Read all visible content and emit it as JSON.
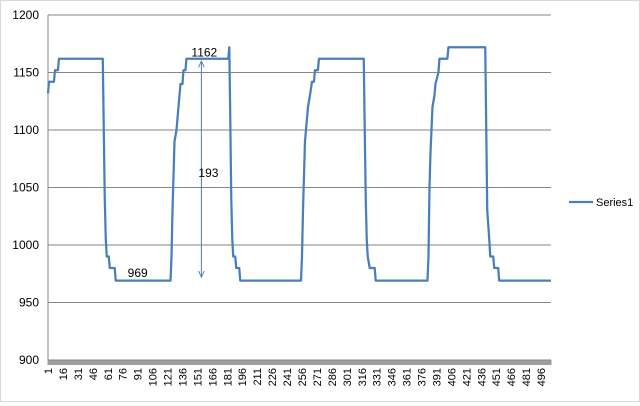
{
  "chart_data": {
    "type": "line",
    "title": "",
    "xlabel": "",
    "ylabel": "",
    "ylim": [
      900,
      1200
    ],
    "yticks": [
      900,
      950,
      1000,
      1050,
      1100,
      1150,
      1200
    ],
    "xlim": [
      1,
      506
    ],
    "xticks": [
      1,
      16,
      31,
      46,
      61,
      76,
      91,
      106,
      121,
      136,
      151,
      166,
      181,
      196,
      211,
      226,
      241,
      256,
      271,
      286,
      301,
      316,
      331,
      346,
      361,
      376,
      391,
      406,
      421,
      436,
      451,
      466,
      481,
      496
    ],
    "grid": "horizontal",
    "legend_position": "right",
    "colors": {
      "series": "#4a7ebb",
      "grid": "#868686",
      "axis": "#868686",
      "annotation_arrow": "#4a7ebb"
    },
    "series": [
      {
        "name": "Series1",
        "points": [
          [
            1,
            1132
          ],
          [
            2,
            1142
          ],
          [
            7,
            1142
          ],
          [
            8,
            1152
          ],
          [
            11,
            1152
          ],
          [
            12,
            1162
          ],
          [
            56,
            1162
          ],
          [
            57,
            1100
          ],
          [
            58,
            1040
          ],
          [
            59,
            1005
          ],
          [
            60,
            990
          ],
          [
            62,
            990
          ],
          [
            63,
            980
          ],
          [
            68,
            980
          ],
          [
            69,
            969
          ],
          [
            124,
            969
          ],
          [
            125,
            990
          ],
          [
            126,
            1030
          ],
          [
            127,
            1060
          ],
          [
            128,
            1090
          ],
          [
            130,
            1100
          ],
          [
            131,
            1110
          ],
          [
            132,
            1120
          ],
          [
            133,
            1130
          ],
          [
            134,
            1140
          ],
          [
            136,
            1140
          ],
          [
            137,
            1152
          ],
          [
            139,
            1152
          ],
          [
            140,
            1162
          ],
          [
            182,
            1162
          ],
          [
            183,
            1172
          ],
          [
            184,
            1110
          ],
          [
            185,
            1040
          ],
          [
            186,
            1005
          ],
          [
            187,
            990
          ],
          [
            189,
            990
          ],
          [
            190,
            980
          ],
          [
            193,
            980
          ],
          [
            194,
            969
          ],
          [
            255,
            969
          ],
          [
            256,
            990
          ],
          [
            257,
            1030
          ],
          [
            258,
            1060
          ],
          [
            259,
            1090
          ],
          [
            261,
            1110
          ],
          [
            262,
            1120
          ],
          [
            264,
            1130
          ],
          [
            266,
            1142
          ],
          [
            268,
            1142
          ],
          [
            269,
            1152
          ],
          [
            272,
            1152
          ],
          [
            273,
            1162
          ],
          [
            318,
            1162
          ],
          [
            319,
            1100
          ],
          [
            320,
            1040
          ],
          [
            321,
            1005
          ],
          [
            322,
            990
          ],
          [
            324,
            980
          ],
          [
            329,
            980
          ],
          [
            330,
            969
          ],
          [
            382,
            969
          ],
          [
            383,
            990
          ],
          [
            384,
            1050
          ],
          [
            385,
            1080
          ],
          [
            386,
            1100
          ],
          [
            387,
            1120
          ],
          [
            389,
            1130
          ],
          [
            390,
            1140
          ],
          [
            393,
            1150
          ],
          [
            394,
            1162
          ],
          [
            402,
            1162
          ],
          [
            403,
            1172
          ],
          [
            440,
            1172
          ],
          [
            441,
            1100
          ],
          [
            442,
            1030
          ],
          [
            444,
            1005
          ],
          [
            445,
            990
          ],
          [
            448,
            990
          ],
          [
            449,
            980
          ],
          [
            453,
            980
          ],
          [
            454,
            969
          ],
          [
            506,
            969
          ]
        ]
      }
    ],
    "annotations": {
      "peak_label": "1162",
      "trough_label": "969",
      "range_label": "193",
      "arrow_x": 155,
      "arrow_top": 1160,
      "arrow_bottom": 972,
      "peak_label_at": [
        145,
        1164
      ],
      "trough_label_at": [
        81,
        972
      ],
      "range_label_at": [
        152,
        1059
      ]
    }
  }
}
